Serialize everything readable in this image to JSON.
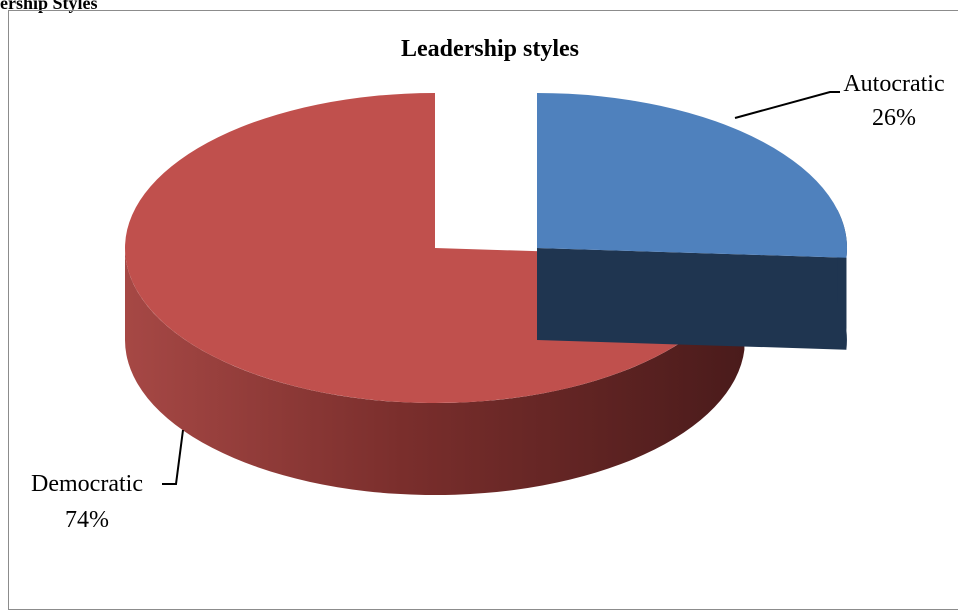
{
  "figure": {
    "caption": "ership Styles"
  },
  "colors": {
    "autocratic": "#4f81bd",
    "democratic": "#c0504d"
  },
  "chart_data": {
    "type": "pie",
    "title": "Leadership styles",
    "legend": "none",
    "slices": [
      {
        "label": "Autocratic",
        "value": 26,
        "pct_label": "26%",
        "color": "#4f81bd",
        "exploded": true
      },
      {
        "label": "Democratic",
        "value": 74,
        "pct_label": "74%",
        "color": "#c0504d",
        "exploded": false
      }
    ]
  }
}
